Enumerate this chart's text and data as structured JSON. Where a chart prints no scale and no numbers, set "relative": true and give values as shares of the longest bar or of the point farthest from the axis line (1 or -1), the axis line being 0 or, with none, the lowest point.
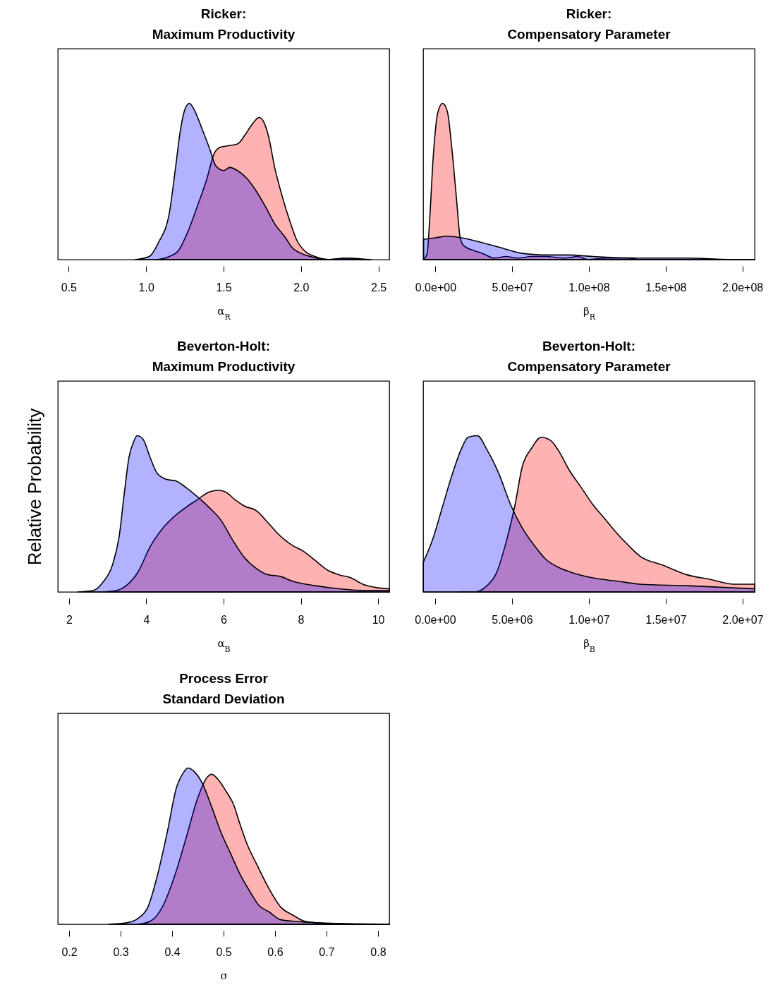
{
  "chart_data": [
    {
      "type": "area",
      "title": "Ricker:\nMaximum Productivity",
      "xlabel": "α$_{R}$",
      "relative": true,
      "xlim": [
        0.43,
        2.57
      ],
      "xticks": [
        {
          "value": 0.5,
          "label": "0.5"
        },
        {
          "value": 1,
          "label": "1.0"
        },
        {
          "value": 1.5,
          "label": "1.5"
        },
        {
          "value": 2,
          "label": "2.0"
        },
        {
          "value": 2.5,
          "label": "2.5"
        }
      ],
      "series": [
        {
          "color": "#ff0000",
          "x": [
            1.07,
            1.15,
            1.21,
            1.27,
            1.33,
            1.39,
            1.44,
            1.48,
            1.54,
            1.59,
            1.64,
            1.68,
            1.73,
            1.76,
            1.79,
            1.83,
            1.88,
            1.93,
            1.97,
            2.03,
            2.09,
            2.19,
            2.29,
            2.4,
            2.45
          ],
          "values": [
            0,
            0.02,
            0.06,
            0.18,
            0.34,
            0.51,
            0.68,
            0.72,
            0.73,
            0.74,
            0.8,
            0.86,
            0.91,
            0.88,
            0.79,
            0.59,
            0.4,
            0.24,
            0.13,
            0.05,
            0.02,
            0,
            0.01,
            0,
            0
          ]
        },
        {
          "color": "#0000ff",
          "x": [
            0.93,
            1.02,
            1.08,
            1.15,
            1.19,
            1.22,
            1.25,
            1.28,
            1.31,
            1.36,
            1.41,
            1.45,
            1.5,
            1.54,
            1.59,
            1.65,
            1.71,
            1.77,
            1.83,
            1.9,
            1.94,
            2,
            2.06,
            2.17,
            2.29,
            2.45
          ],
          "values": [
            0,
            0.02,
            0.11,
            0.3,
            0.59,
            0.82,
            0.96,
            1,
            0.96,
            0.84,
            0.71,
            0.6,
            0.57,
            0.59,
            0.57,
            0.52,
            0.44,
            0.34,
            0.23,
            0.14,
            0.08,
            0.04,
            0.02,
            0,
            0.01,
            0
          ]
        }
      ]
    },
    {
      "type": "area",
      "title": "Ricker:\nCompensatory Parameter",
      "xlabel": "β$_{R}$",
      "relative": true,
      "xlim": [
        -8000000,
        208000000
      ],
      "xticks": [
        {
          "value": 0,
          "label": "0.0e+00"
        },
        {
          "value": 50000000,
          "label": "5.0e+07"
        },
        {
          "value": 100000000,
          "label": "1.0e+08"
        },
        {
          "value": 150000000,
          "label": "1.5e+08"
        },
        {
          "value": 200000000,
          "label": "2.0e+08"
        }
      ],
      "series": [
        {
          "color": "#ff0000",
          "x": [
            -7700000,
            -5400000,
            -3800000,
            -1500000,
            1500000,
            4600000,
            7700000,
            10700000,
            13800000,
            16100000,
            18400000,
            24500000,
            30600000,
            38300000,
            45900000,
            53600000,
            62700000,
            71900000,
            84200000,
            92600000,
            99500000,
            110200000,
            125500000,
            133100000,
            208000000
          ],
          "values": [
            0,
            0.04,
            0.25,
            0.65,
            0.94,
            1,
            0.95,
            0.71,
            0.38,
            0.14,
            0.09,
            0.06,
            0.04,
            0.01,
            0.02,
            0.01,
            0.02,
            0.02,
            0.01,
            0.02,
            0,
            0.01,
            0.01,
            0,
            0
          ]
        },
        {
          "color": "#0000ff",
          "x": [
            -7700000,
            0,
            7700000,
            16800000,
            26000000,
            41300000,
            56600000,
            71900000,
            87200000,
            102500000,
            133100000,
            163700000,
            194300000,
            208000000
          ],
          "values": [
            0.13,
            0.14,
            0.15,
            0.14,
            0.12,
            0.08,
            0.04,
            0.03,
            0.03,
            0.02,
            0.01,
            0.01,
            0,
            0
          ]
        }
      ]
    },
    {
      "type": "area",
      "title": "Beverton-Holt:\nMaximum Productivity",
      "xlabel": "α$_{B}$",
      "ylabel": "Relative Probability",
      "relative": true,
      "xlim": [
        1.71,
        10.29
      ],
      "xticks": [
        2,
        4,
        6,
        8,
        10
      ],
      "series": [
        {
          "color": "#ff0000",
          "x": [
            2.87,
            3.24,
            3.48,
            3.79,
            4.1,
            4.4,
            4.71,
            5.02,
            5.32,
            5.63,
            5.87,
            6.05,
            6.3,
            6.54,
            6.85,
            7.16,
            7.46,
            7.77,
            8.07,
            8.38,
            8.69,
            8.99,
            9.3,
            9.6,
            9.91,
            10.29
          ],
          "values": [
            0,
            0.01,
            0.04,
            0.13,
            0.29,
            0.4,
            0.48,
            0.54,
            0.59,
            0.64,
            0.65,
            0.64,
            0.59,
            0.55,
            0.52,
            0.44,
            0.36,
            0.3,
            0.26,
            0.2,
            0.14,
            0.11,
            0.09,
            0.05,
            0.03,
            0.02
          ]
        },
        {
          "color": "#0000ff",
          "x": [
            2.23,
            2.63,
            2.87,
            3.12,
            3.3,
            3.43,
            3.55,
            3.67,
            3.76,
            3.91,
            4.1,
            4.28,
            4.53,
            4.77,
            5.02,
            5.32,
            5.63,
            5.93,
            6.24,
            6.54,
            6.85,
            7.16,
            7.46,
            7.77,
            8.38,
            8.99,
            9.6,
            10.29
          ],
          "values": [
            0,
            0.01,
            0.06,
            0.17,
            0.36,
            0.63,
            0.86,
            0.96,
            1,
            0.98,
            0.86,
            0.76,
            0.72,
            0.71,
            0.67,
            0.61,
            0.54,
            0.46,
            0.33,
            0.22,
            0.15,
            0.11,
            0.1,
            0.07,
            0.04,
            0.02,
            0.01,
            0.01
          ]
        }
      ]
    },
    {
      "type": "area",
      "title": "Beverton-Holt:\nCompensatory Parameter",
      "xlabel": "β$_{B}$",
      "relative": true,
      "xlim": [
        -780000,
        20780000
      ],
      "xticks": [
        {
          "value": 0,
          "label": "0.0e+00"
        },
        {
          "value": 5000000,
          "label": "5.0e+06"
        },
        {
          "value": 10000000,
          "label": "1.0e+07"
        },
        {
          "value": 15000000,
          "label": "1.5e+07"
        },
        {
          "value": 20000000,
          "label": "2.0e+07"
        }
      ],
      "series": [
        {
          "color": "#ff0000",
          "x": [
            1530000,
            2600000,
            3370000,
            3980000,
            4590000,
            5200000,
            5660000,
            6270000,
            6890000,
            7500000,
            8110000,
            8720000,
            9490000,
            10250000,
            11020000,
            11780000,
            12550000,
            13310000,
            14840000,
            16370000,
            17900000,
            19430000,
            20780000
          ],
          "values": [
            0,
            0,
            0.04,
            0.12,
            0.31,
            0.56,
            0.8,
            0.92,
            0.99,
            0.97,
            0.89,
            0.78,
            0.67,
            0.56,
            0.47,
            0.38,
            0.3,
            0.23,
            0.17,
            0.11,
            0.08,
            0.05,
            0.05
          ]
        },
        {
          "color": "#0000ff",
          "x": [
            -770000,
            -150000,
            460000,
            1070000,
            1680000,
            2140000,
            2750000,
            3370000,
            4130000,
            4900000,
            5660000,
            6430000,
            7190000,
            7960000,
            8720000,
            10250000,
            11780000,
            13310000,
            16370000,
            20780000
          ],
          "values": [
            0.19,
            0.34,
            0.54,
            0.74,
            0.91,
            0.99,
            1,
            0.91,
            0.76,
            0.56,
            0.41,
            0.3,
            0.21,
            0.16,
            0.13,
            0.09,
            0.07,
            0.05,
            0.04,
            0.02
          ]
        }
      ]
    },
    {
      "type": "area",
      "title": "Process Error\nStandard Deviation",
      "xlabel": "σ",
      "relative": true,
      "xlim": [
        0.178,
        0.822
      ],
      "xticks": [
        0.2,
        0.3,
        0.4,
        0.5,
        0.6,
        0.7,
        0.8
      ],
      "series": [
        {
          "color": "#ff0000",
          "x": [
            0.335,
            0.358,
            0.381,
            0.404,
            0.427,
            0.45,
            0.468,
            0.477,
            0.491,
            0.505,
            0.519,
            0.532,
            0.546,
            0.565,
            0.588,
            0.611,
            0.634,
            0.657,
            0.68,
            0.822
          ],
          "values": [
            0,
            0.02,
            0.11,
            0.3,
            0.55,
            0.81,
            0.94,
            0.96,
            0.92,
            0.85,
            0.77,
            0.64,
            0.51,
            0.38,
            0.23,
            0.11,
            0.06,
            0.02,
            0.01,
            0
          ]
        },
        {
          "color": "#0000ff",
          "x": [
            0.277,
            0.312,
            0.335,
            0.353,
            0.372,
            0.39,
            0.409,
            0.422,
            0.431,
            0.445,
            0.459,
            0.477,
            0.496,
            0.514,
            0.532,
            0.551,
            0.569,
            0.588,
            0.61,
            0.633,
            0.679,
            0.726,
            0.822
          ],
          "values": [
            0,
            0.01,
            0.04,
            0.11,
            0.32,
            0.58,
            0.88,
            0.97,
            1,
            0.97,
            0.9,
            0.75,
            0.58,
            0.45,
            0.32,
            0.21,
            0.12,
            0.08,
            0.03,
            0.02,
            0.01,
            0,
            0
          ]
        }
      ]
    }
  ]
}
